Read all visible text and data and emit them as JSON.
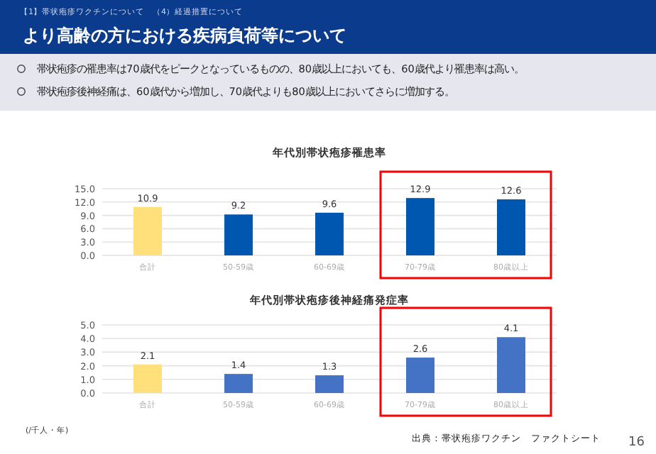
{
  "chart_data": [
    {
      "type": "bar",
      "title": "年代別帯状疱疹罹患率",
      "annotations": [
        "【1】帯状疱疹ワクチンについて　（4）経過措置について",
        "より高齢の方における疾病負荷等について",
        "帯状疱疹の罹患率は70歳代をピークとなっているものの、80歳以上においても、60歳代より罹患率は高い。",
        "帯状疱疹後神経痛は、60歳代から増加し、70歳代よりも80歳以上においてさらに増加する。"
      ],
      "categories": [
        "合計",
        "50-59歳",
        "60-69歳",
        "70-79歳",
        "80歳以上"
      ],
      "values": [
        10.9,
        9.2,
        9.6,
        12.9,
        12.6
      ],
      "colors": [
        "#ffe07a",
        "#0057b0",
        "#0057b0",
        "#0057b0",
        "#0057b0"
      ],
      "ylim": [
        0,
        15
      ],
      "yticks": [
        {
          "value": 0,
          "label": "0.0"
        },
        {
          "value": 3,
          "label": "3.0"
        },
        {
          "value": 6,
          "label": "6.0"
        },
        {
          "value": 9,
          "label": "9.0"
        },
        {
          "value": 12,
          "label": "12.0"
        },
        {
          "value": 15,
          "label": "15.0"
        }
      ],
      "grid": "y",
      "data_labels": true
    },
    {
      "type": "bar",
      "title": "年代別帯状疱疹後神経痛発症率",
      "annotations": [
        "(/千人・年)",
        "出典：帯状疱疹ワクチン　ファクトシート",
        "16"
      ],
      "categories": [
        "合計",
        "50-59歳",
        "60-69歳",
        "70-79歳",
        "80歳以上"
      ],
      "values": [
        2.1,
        1.4,
        1.3,
        2.6,
        4.1
      ],
      "colors": [
        "#ffe07a",
        "#4472c4",
        "#4472c4",
        "#4472c4",
        "#4472c4"
      ],
      "ylim": [
        0,
        5
      ],
      "yticks": [
        {
          "value": 0,
          "label": "0.0"
        },
        {
          "value": 1,
          "label": "1.0"
        },
        {
          "value": 2,
          "label": "2.0"
        },
        {
          "value": 3,
          "label": "3.0"
        },
        {
          "value": 4,
          "label": "4.0"
        },
        {
          "value": 5,
          "label": "5.0"
        }
      ],
      "grid": "y",
      "data_labels": true
    }
  ]
}
